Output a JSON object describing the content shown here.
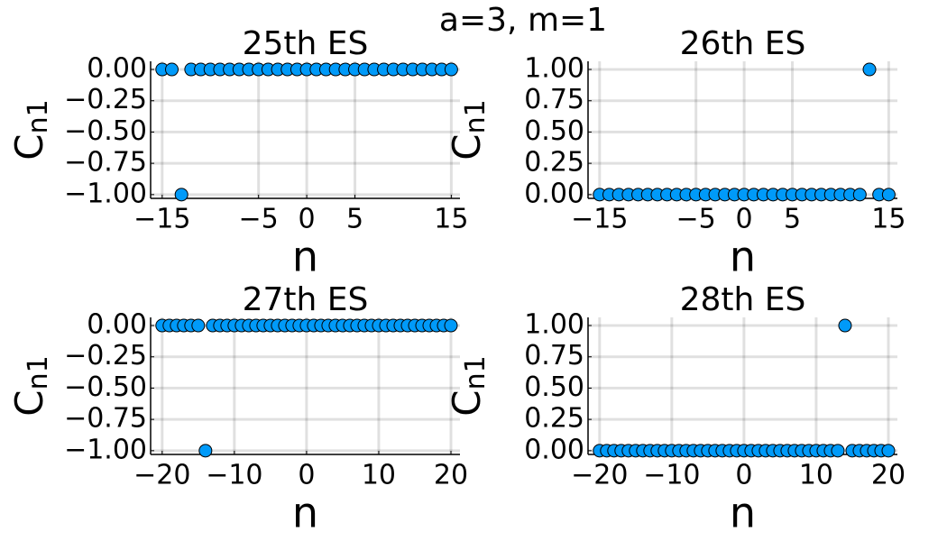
{
  "title": "a=3, m=1",
  "chart_data": [
    {
      "type": "scatter",
      "title": "25th ES",
      "x_label": "n",
      "y_label": "C",
      "y_label_subscript": "n1",
      "color": "#009AF9",
      "grid": true,
      "x": [
        -15,
        -14,
        -13,
        -12,
        -11,
        -10,
        -9,
        -8,
        -7,
        -6,
        -5,
        -4,
        -3,
        -2,
        -1,
        0,
        1,
        2,
        3,
        4,
        5,
        6,
        7,
        8,
        9,
        10,
        11,
        12,
        13,
        14,
        15
      ],
      "values": [
        0,
        0,
        -1,
        0,
        0,
        0,
        0,
        0,
        0,
        0,
        0,
        0,
        0,
        0,
        0,
        0,
        0,
        0,
        0,
        0,
        0,
        0,
        0,
        0,
        0,
        0,
        0,
        0,
        0,
        0,
        0
      ],
      "xlim": [
        -16.2,
        15.9
      ],
      "ylim": [
        -1.03,
        0.065
      ],
      "xticks": [
        {
          "value": -15,
          "label": "−15"
        },
        {
          "value": -5,
          "label": "−5"
        },
        0,
        5,
        15
      ],
      "yticks": [
        {
          "value": 0,
          "label": "0.00"
        },
        {
          "value": -0.25,
          "label": "−0.25"
        },
        {
          "value": -0.5,
          "label": "−0.50"
        },
        {
          "value": -0.75,
          "label": "−0.75"
        },
        {
          "value": -1,
          "label": "−1.00"
        }
      ]
    },
    {
      "type": "scatter",
      "title": "26th ES",
      "x_label": "n",
      "y_label": "C",
      "y_label_subscript": "n1",
      "color": "#009AF9",
      "grid": true,
      "x": [
        -15,
        -14,
        -13,
        -12,
        -11,
        -10,
        -9,
        -8,
        -7,
        -6,
        -5,
        -4,
        -3,
        -2,
        -1,
        0,
        1,
        2,
        3,
        4,
        5,
        6,
        7,
        8,
        9,
        10,
        11,
        12,
        13,
        14,
        15
      ],
      "values": [
        0,
        0,
        0,
        0,
        0,
        0,
        0,
        0,
        0,
        0,
        0,
        0,
        0,
        0,
        0,
        0,
        0,
        0,
        0,
        0,
        0,
        0,
        0,
        0,
        0,
        0,
        0,
        0,
        1,
        0,
        0
      ],
      "xlim": [
        -16.2,
        15.9
      ],
      "ylim": [
        -0.03,
        1.065
      ],
      "xticks": [
        {
          "value": -15,
          "label": "−15"
        },
        {
          "value": -5,
          "label": "−5"
        },
        0,
        5,
        15
      ],
      "yticks": [
        {
          "value": 0,
          "label": "0.00"
        },
        {
          "value": 0.25,
          "label": "0.25"
        },
        {
          "value": 0.5,
          "label": "0.50"
        },
        {
          "value": 0.75,
          "label": "0.75"
        },
        {
          "value": 1,
          "label": "1.00"
        }
      ]
    },
    {
      "type": "scatter",
      "title": "27th ES",
      "x_label": "n",
      "y_label": "C",
      "y_label_subscript": "n1",
      "color": "#009AF9",
      "grid": true,
      "x": [
        -20,
        -19,
        -18,
        -17,
        -16,
        -15,
        -14,
        -13,
        -12,
        -11,
        -10,
        -9,
        -8,
        -7,
        -6,
        -5,
        -4,
        -3,
        -2,
        -1,
        0,
        1,
        2,
        3,
        4,
        5,
        6,
        7,
        8,
        9,
        10,
        11,
        12,
        13,
        14,
        15,
        16,
        17,
        18,
        19,
        20
      ],
      "values": [
        0,
        0,
        0,
        0,
        0,
        0,
        -1,
        0,
        0,
        0,
        0,
        0,
        0,
        0,
        0,
        0,
        0,
        0,
        0,
        0,
        0,
        0,
        0,
        0,
        0,
        0,
        0,
        0,
        0,
        0,
        0,
        0,
        0,
        0,
        0,
        0,
        0,
        0,
        0,
        0,
        0
      ],
      "xlim": [
        -21.6,
        21.25
      ],
      "ylim": [
        -1.03,
        0.065
      ],
      "xticks": [
        {
          "value": -20,
          "label": "−20"
        },
        {
          "value": -10,
          "label": "−10"
        },
        0,
        10,
        20
      ],
      "yticks": [
        {
          "value": 0,
          "label": "0.00"
        },
        {
          "value": -0.25,
          "label": "−0.25"
        },
        {
          "value": -0.5,
          "label": "−0.50"
        },
        {
          "value": -0.75,
          "label": "−0.75"
        },
        {
          "value": -1,
          "label": "−1.00"
        }
      ]
    },
    {
      "type": "scatter",
      "title": "28th ES",
      "x_label": "n",
      "y_label": "C",
      "y_label_subscript": "n1",
      "color": "#009AF9",
      "grid": true,
      "x": [
        -20,
        -19,
        -18,
        -17,
        -16,
        -15,
        -14,
        -13,
        -12,
        -11,
        -10,
        -9,
        -8,
        -7,
        -6,
        -5,
        -4,
        -3,
        -2,
        -1,
        0,
        1,
        2,
        3,
        4,
        5,
        6,
        7,
        8,
        9,
        10,
        11,
        12,
        13,
        14,
        15,
        16,
        17,
        18,
        19,
        20
      ],
      "values": [
        0,
        0,
        0,
        0,
        0,
        0,
        0,
        0,
        0,
        0,
        0,
        0,
        0,
        0,
        0,
        0,
        0,
        0,
        0,
        0,
        0,
        0,
        0,
        0,
        0,
        0,
        0,
        0,
        0,
        0,
        0,
        0,
        0,
        0,
        1,
        0,
        0,
        0,
        0,
        0,
        0
      ],
      "xlim": [
        -21.6,
        21.25
      ],
      "ylim": [
        -0.03,
        1.065
      ],
      "xticks": [
        {
          "value": -20,
          "label": "−20"
        },
        {
          "value": -10,
          "label": "−10"
        },
        0,
        10,
        20
      ],
      "yticks": [
        {
          "value": 0,
          "label": "0.00"
        },
        {
          "value": 0.25,
          "label": "0.25"
        },
        {
          "value": 0.5,
          "label": "0.50"
        },
        {
          "value": 0.75,
          "label": "0.75"
        },
        {
          "value": 1,
          "label": "1.00"
        }
      ]
    }
  ]
}
